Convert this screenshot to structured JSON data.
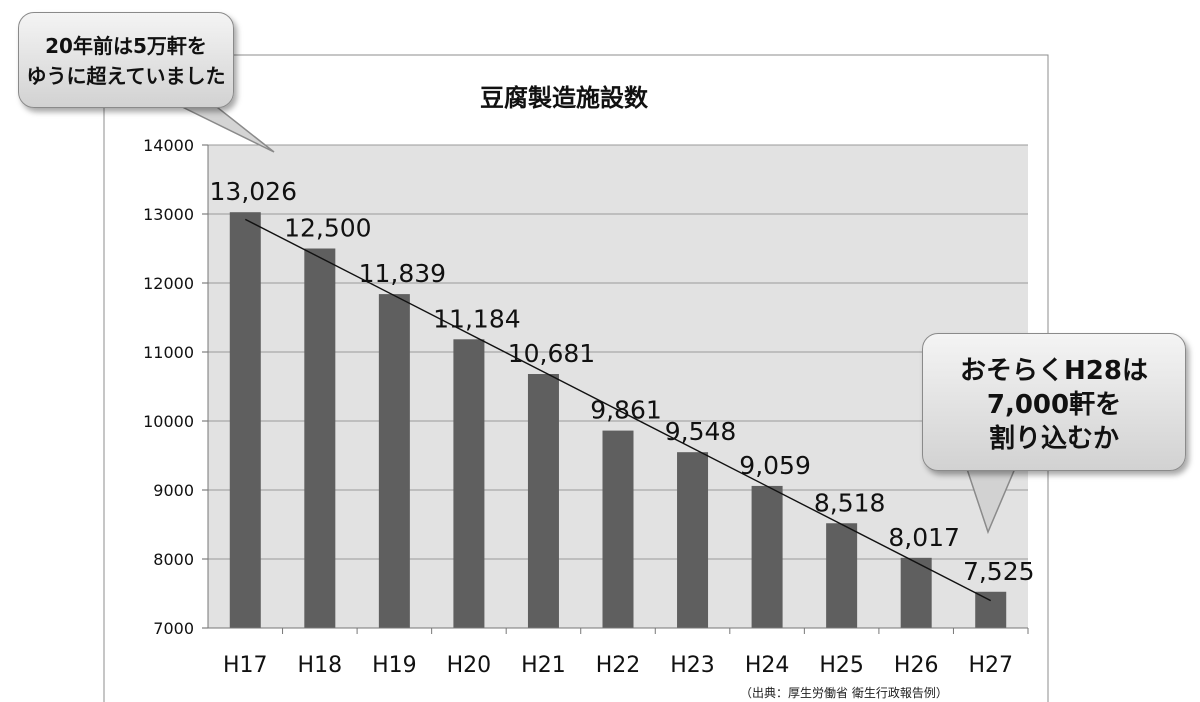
{
  "chart_data": {
    "type": "bar",
    "title": "豆腐製造施設数",
    "categories": [
      "H17",
      "H18",
      "H19",
      "H20",
      "H21",
      "H22",
      "H23",
      "H24",
      "H25",
      "H26",
      "H27"
    ],
    "values": [
      13026,
      12500,
      11839,
      11184,
      10681,
      9861,
      9548,
      9059,
      8518,
      8017,
      7525
    ],
    "data_labels": [
      "13,026",
      "12,500",
      "11,839",
      "11,184",
      "10,681",
      "9,861",
      "9,548",
      "9,059",
      "8,518",
      "8,017",
      "7,525"
    ],
    "ylim": [
      7000,
      14000
    ],
    "yticks": [
      "7000",
      "8000",
      "9000",
      "10000",
      "11000",
      "12000",
      "13000",
      "14000"
    ],
    "grid": true,
    "trendline": true,
    "xlabel": "",
    "ylabel": "",
    "colors": {
      "bar": "#5f5f5f",
      "plot_bg": "#e2e2e2",
      "grid": "#9a9a9a"
    }
  },
  "callouts": {
    "left": {
      "line1": "20年前は5万軒を",
      "line2": "ゆうに超えていました"
    },
    "right": {
      "line1": "おそらくH28は",
      "line2": "7,000軒を",
      "line3": "割り込むか"
    }
  },
  "source": "（出典：厚生労働省 衛生行政報告例）"
}
